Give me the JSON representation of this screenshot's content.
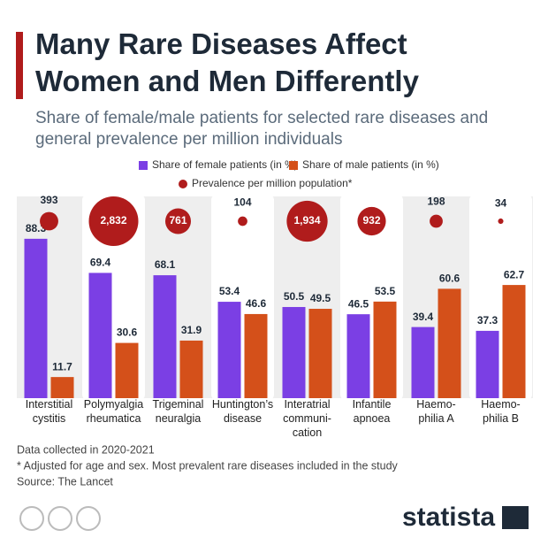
{
  "chart_data": {
    "type": "bar",
    "title": "Many Rare Diseases Affect Women and Men Differently",
    "subtitle": "Share of female/male patients for selected rare diseases and general prevalence per million individuals",
    "categories": [
      "Interstitial\ncystitis",
      "Polymyalgia\nrheumatica",
      "Trigeminal\nneuralgia",
      "Huntington’s\ndisease",
      "Interatrial\ncommuni-\ncation",
      "Infantile\napnoea",
      "Haemo-\nphilia A",
      "Haemo-\nphilia B"
    ],
    "series": [
      {
        "name": "Share of female patients (in %)",
        "color": "#7b3fe4",
        "values": [
          88.3,
          69.4,
          68.1,
          53.4,
          50.5,
          46.5,
          39.4,
          37.3
        ]
      },
      {
        "name": "Share of male patients (in %)",
        "color": "#d4501a",
        "values": [
          11.7,
          30.6,
          31.9,
          46.6,
          49.5,
          53.5,
          60.6,
          62.7
        ]
      },
      {
        "name": "Prevalence per million population*",
        "color": "#b01c1c",
        "type": "bubble",
        "values": [
          393,
          2832,
          761,
          104,
          1934,
          932,
          198,
          34
        ],
        "value_labels": [
          "393",
          "2,832",
          "761",
          "104",
          "1,934",
          "932",
          "198",
          "34"
        ]
      }
    ],
    "ylim": [
      0,
      100
    ],
    "notes": [
      "Data collected in 2020-2021",
      "* Adjusted for age and sex. Most prevalent rare diseases included in the study",
      "Source: The Lancet"
    ],
    "brand": "statista"
  }
}
